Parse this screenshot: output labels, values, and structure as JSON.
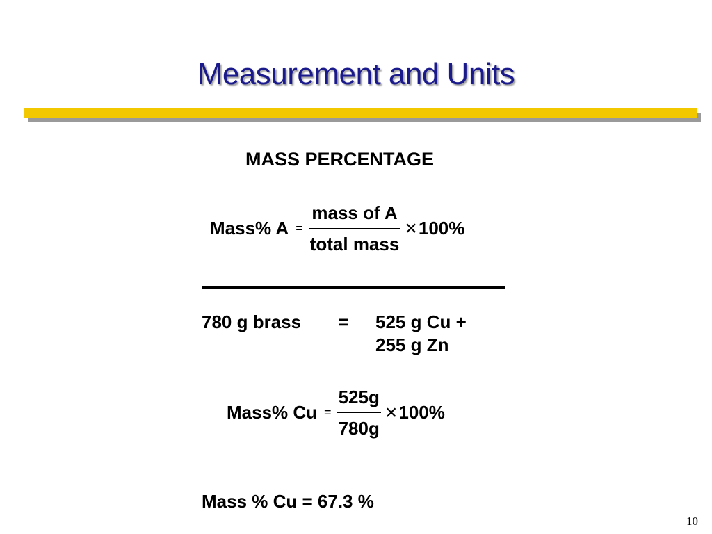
{
  "slide": {
    "title": "Measurement and Units",
    "heading": "MASS PERCENTAGE",
    "page_number": "10"
  },
  "formula": {
    "lhs": "Mass% A",
    "equals": "=",
    "numerator": "mass of A",
    "denominator": "total mass",
    "times": "×",
    "factor": "100%"
  },
  "example": {
    "brass": "780 g brass",
    "equals": "=",
    "copper": "525 g Cu +",
    "zinc": "255 g Zn"
  },
  "calculation": {
    "lhs": "Mass% Cu",
    "equals": "=",
    "numerator": "525g",
    "denominator": "780g",
    "times": "×",
    "factor": "100%"
  },
  "result": "Mass % Cu = 67.3 %",
  "colors": {
    "title": "#1a1a8c",
    "accent_bar": "#f2c800",
    "bar_shadow": "#9a9a9a"
  }
}
